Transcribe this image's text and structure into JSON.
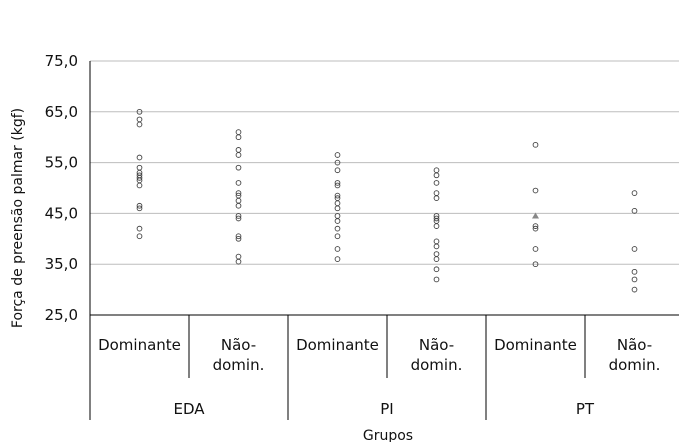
{
  "chart_data": {
    "type": "scatter",
    "title": "",
    "xlabel": "Grupos",
    "ylabel": "Força de preensão palmar (kgf)",
    "ylim": [
      25,
      75
    ],
    "yticks": [
      "25,0",
      "35,0",
      "45,0",
      "55,0",
      "65,0",
      "75,0"
    ],
    "grid": "horizontal",
    "groups": [
      "EDA",
      "PI",
      "PT"
    ],
    "categories": [
      {
        "label": "Dominante",
        "group": "EDA"
      },
      {
        "label": "Não-\ndomin.",
        "group": "EDA"
      },
      {
        "label": "Dominante",
        "group": "PI"
      },
      {
        "label": "Não-\ndomin.",
        "group": "PI"
      },
      {
        "label": "Dominante",
        "group": "PT"
      },
      {
        "label": "Não-\ndomin.",
        "group": "PT"
      }
    ],
    "series": [
      {
        "values": [
          [
            65.0,
            63.5,
            62.5,
            56.0,
            54.0,
            53.0,
            52.5,
            52.0,
            51.5,
            50.5,
            46.5,
            46.0,
            42.0,
            40.5
          ],
          [
            61.0,
            60.0,
            57.5,
            56.5,
            54.0,
            51.0,
            49.0,
            48.5,
            47.5,
            46.5,
            44.5,
            44.0,
            40.5,
            40.0,
            36.5,
            35.5
          ],
          [
            56.5,
            55.0,
            53.5,
            51.0,
            50.5,
            48.5,
            48.0,
            47.0,
            46.0,
            44.5,
            43.5,
            42.0,
            40.5,
            38.0,
            36.0
          ],
          [
            53.5,
            52.5,
            51.0,
            49.0,
            48.0,
            44.5,
            44.0,
            43.5,
            42.5,
            39.5,
            38.5,
            37.0,
            36.0,
            34.0,
            32.0
          ],
          [
            58.5,
            49.5,
            42.5,
            42.0,
            38.0,
            35.0
          ],
          [
            49.0,
            45.5,
            38.0,
            33.5,
            32.0,
            30.0
          ]
        ]
      },
      {
        "marker": "triangle",
        "values": [
          null,
          null,
          null,
          null,
          [
            44.5
          ],
          null
        ]
      }
    ],
    "colors": {
      "marker": "#444444",
      "grid": "#bdbdbd",
      "axis": "#000000",
      "triangle": "#888888"
    }
  }
}
